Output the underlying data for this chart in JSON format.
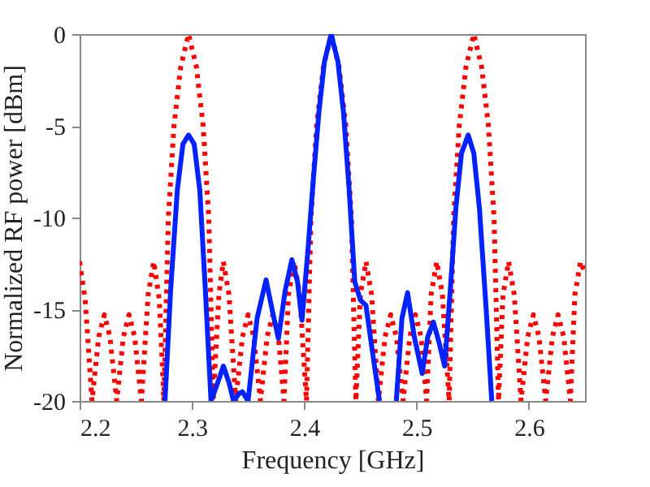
{
  "chart_data": {
    "type": "line",
    "xlabel": "Frequency [GHz]",
    "ylabel": "Normalized RF power [dBm]",
    "xlim": [
      2.2,
      2.65
    ],
    "xticks": [
      2.2,
      2.3,
      2.4,
      2.5,
      2.6
    ],
    "ylim": [
      -20,
      0
    ],
    "yticks": [
      -20,
      -15,
      -10,
      -5,
      0
    ],
    "series": [
      {
        "color": "#ff0000",
        "line_style": "dotted",
        "x": [
          2.2,
          2.205,
          2.211,
          2.217,
          2.222,
          2.227,
          2.233,
          2.239,
          2.244,
          2.249,
          2.255,
          2.261,
          2.266,
          2.271,
          2.275,
          2.279,
          2.284,
          2.29,
          2.297,
          2.304,
          2.31,
          2.315,
          2.319,
          2.324,
          2.328,
          2.333,
          2.339,
          2.345,
          2.35,
          2.355,
          2.361,
          2.367,
          2.372,
          2.377,
          2.382,
          2.386,
          2.391,
          2.396,
          2.402,
          2.406,
          2.411,
          2.417,
          2.424,
          2.431,
          2.437,
          2.442,
          2.446,
          2.45,
          2.455,
          2.46,
          2.466,
          2.472,
          2.477,
          2.482,
          2.488,
          2.494,
          2.499,
          2.504,
          2.509,
          2.513,
          2.518,
          2.523,
          2.529,
          2.533,
          2.538,
          2.544,
          2.551,
          2.558,
          2.564,
          2.569,
          2.573,
          2.577,
          2.582,
          2.587,
          2.593,
          2.599,
          2.604,
          2.609,
          2.615,
          2.621,
          2.626,
          2.631,
          2.637,
          2.641,
          2.646,
          2.65
        ],
        "values": [
          -12.4,
          -14.5,
          -20,
          -16.5,
          -15.3,
          -16.5,
          -20,
          -16.5,
          -15.3,
          -16.5,
          -20,
          -14.2,
          -12.4,
          -14.5,
          -20,
          -10,
          -5,
          -1.8,
          0,
          -1.8,
          -5,
          -10,
          -20,
          -14.2,
          -12.4,
          -14.2,
          -20,
          -16.5,
          -15.3,
          -16.5,
          -20,
          -16.5,
          -15.3,
          -16.5,
          -20,
          -14.2,
          -12.4,
          -14.2,
          -20,
          -10,
          -5,
          -1.8,
          0,
          -1.8,
          -5,
          -10,
          -20,
          -14.2,
          -12.4,
          -14.2,
          -20,
          -16.5,
          -15.3,
          -16.5,
          -20,
          -16.5,
          -15.3,
          -16.5,
          -20,
          -14.2,
          -12.4,
          -14.2,
          -20,
          -10,
          -5,
          -1.8,
          0,
          -1.8,
          -5,
          -10,
          -20,
          -14.2,
          -12.4,
          -14.2,
          -20,
          -16.5,
          -15.3,
          -16.5,
          -20,
          -16.5,
          -15.3,
          -16.5,
          -20,
          -14.2,
          -12.4,
          -13.0
        ]
      },
      {
        "color": "#0022ff",
        "line_style": "solid",
        "x": [
          2.276,
          2.281,
          2.287,
          2.292,
          2.297,
          2.302,
          2.307,
          2.312,
          2.317,
          2.323,
          2.328,
          2.333,
          2.337,
          2.342,
          2.345,
          2.35,
          2.358,
          2.366,
          2.372,
          2.377,
          2.383,
          2.389,
          2.394,
          2.398,
          2.403,
          2.408,
          2.413,
          2.418,
          2.424,
          2.43,
          2.435,
          2.44,
          2.445,
          2.45,
          2.455,
          2.46,
          2.467,
          2.474,
          2.482,
          2.487,
          2.492,
          2.498,
          2.505,
          2.51,
          2.515,
          2.52,
          2.525,
          2.53,
          2.535,
          2.54,
          2.546,
          2.551,
          2.556,
          2.562,
          2.567
        ],
        "values": [
          -20,
          -14,
          -8.5,
          -6,
          -5.5,
          -6,
          -8.5,
          -14,
          -20,
          -19,
          -18.1,
          -19,
          -20,
          -19.6,
          -19.5,
          -20,
          -15.5,
          -13.4,
          -15.2,
          -16.6,
          -14,
          -12.3,
          -13.5,
          -15.6,
          -12,
          -8,
          -4.3,
          -1.5,
          0,
          -1.5,
          -4.3,
          -8.5,
          -13.5,
          -14.5,
          -14.8,
          -17,
          -20,
          null,
          -20,
          -15.5,
          -14.1,
          -16.5,
          -18.5,
          -16.5,
          -15.7,
          -16.8,
          -18.1,
          -14,
          -9.5,
          -6.5,
          -5.5,
          -6.5,
          -9.5,
          -15,
          -20
        ]
      }
    ]
  }
}
